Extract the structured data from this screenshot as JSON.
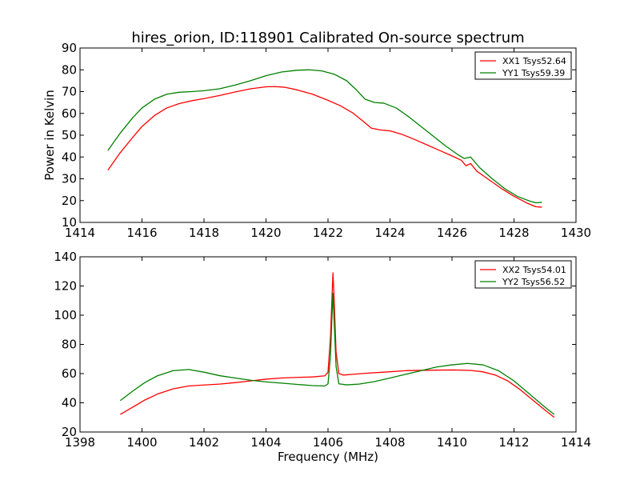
{
  "figure_title": "hires_orion, ID:118901 Calibrated On-source spectrum",
  "colors": {
    "red": "#ff0000",
    "green": "#008000"
  },
  "chart_data": [
    {
      "type": "line",
      "title": "hires_orion, ID:118901 Calibrated On-source spectrum",
      "xlabel": "",
      "ylabel": "Power in Kelvin",
      "xlim": [
        1414,
        1430
      ],
      "ylim": [
        10,
        90
      ],
      "xticks": [
        "1414",
        "1416",
        "1418",
        "1420",
        "1422",
        "1424",
        "1426",
        "1428",
        "1430"
      ],
      "yticks": [
        "10",
        "20",
        "30",
        "40",
        "50",
        "60",
        "70",
        "80",
        "90"
      ],
      "legend_position": "top-right",
      "grid": false,
      "series": [
        {
          "name": "XX1 Tsys52.64",
          "color": "#ff0000",
          "x": [
            1414.9,
            1415.3,
            1415.7,
            1416.0,
            1416.4,
            1416.8,
            1417.2,
            1417.6,
            1418.0,
            1418.5,
            1419.0,
            1419.5,
            1420.0,
            1420.3,
            1420.6,
            1421.0,
            1421.5,
            1422.0,
            1422.4,
            1422.8,
            1423.1,
            1423.4,
            1423.7,
            1424.0,
            1424.4,
            1424.8,
            1425.2,
            1425.6,
            1426.0,
            1426.3,
            1426.45,
            1426.6,
            1426.8,
            1427.2,
            1427.6,
            1428.0,
            1428.4,
            1428.7,
            1428.9
          ],
          "values": [
            34,
            42,
            49,
            54,
            59,
            62.5,
            64.5,
            65.8,
            66.8,
            68.2,
            69.8,
            71.3,
            72.2,
            72.3,
            72.0,
            70.8,
            68.8,
            66.0,
            63.5,
            60.2,
            56.8,
            53.2,
            52.4,
            52.0,
            50.3,
            48.0,
            45.5,
            43.0,
            40.5,
            38.5,
            36.0,
            37.0,
            33.5,
            29.5,
            25.5,
            22.0,
            19.0,
            17.2,
            17.0
          ]
        },
        {
          "name": "YY1 Tsys59.39",
          "color": "#008000",
          "x": [
            1414.9,
            1415.3,
            1415.7,
            1416.0,
            1416.4,
            1416.8,
            1417.2,
            1417.6,
            1418.0,
            1418.5,
            1419.0,
            1419.5,
            1420.0,
            1420.5,
            1421.0,
            1421.4,
            1421.8,
            1422.2,
            1422.6,
            1422.9,
            1423.2,
            1423.5,
            1423.8,
            1424.2,
            1424.6,
            1425.0,
            1425.4,
            1425.8,
            1426.2,
            1426.4,
            1426.6,
            1426.9,
            1427.3,
            1427.7,
            1428.1,
            1428.5,
            1428.7,
            1428.9
          ],
          "values": [
            43,
            51,
            58,
            62.5,
            66.5,
            68.8,
            69.7,
            70.0,
            70.4,
            71.3,
            73.0,
            75.0,
            77.3,
            79.0,
            79.8,
            80.0,
            79.5,
            78.0,
            75.0,
            71.0,
            66.5,
            65.0,
            64.7,
            62.5,
            58.5,
            54.0,
            49.5,
            45.0,
            41.0,
            39.3,
            40.0,
            35.0,
            30.0,
            25.5,
            22.0,
            19.8,
            19.0,
            19.2
          ]
        }
      ]
    },
    {
      "type": "line",
      "title": "",
      "xlabel": "Frequency (MHz)",
      "ylabel": "",
      "xlim": [
        1398,
        1414
      ],
      "ylim": [
        20,
        140
      ],
      "xticks": [
        "1398",
        "1400",
        "1402",
        "1404",
        "1406",
        "1408",
        "1410",
        "1412",
        "1414"
      ],
      "yticks": [
        "20",
        "40",
        "60",
        "80",
        "100",
        "120",
        "140"
      ],
      "legend_position": "top-right",
      "grid": false,
      "series": [
        {
          "name": "XX2 Tsys54.01",
          "color": "#ff0000",
          "x": [
            1399.3,
            1399.7,
            1400.1,
            1400.5,
            1401.0,
            1401.5,
            1402.0,
            1402.5,
            1403.0,
            1403.5,
            1404.0,
            1404.5,
            1405.0,
            1405.5,
            1405.9,
            1406.0,
            1406.08,
            1406.13,
            1406.16,
            1406.2,
            1406.26,
            1406.35,
            1406.5,
            1406.8,
            1407.2,
            1407.8,
            1408.5,
            1409.2,
            1410.0,
            1410.6,
            1411.0,
            1411.4,
            1411.8,
            1412.2,
            1412.6,
            1413.0,
            1413.3
          ],
          "values": [
            32,
            37,
            42,
            46,
            49.5,
            51.5,
            52.2,
            52.8,
            53.8,
            55.0,
            56.2,
            57.0,
            57.4,
            57.7,
            58.5,
            61.0,
            85.0,
            113.0,
            129.0,
            110.0,
            75.0,
            60.0,
            59.0,
            59.5,
            60.2,
            61.0,
            62.0,
            62.3,
            62.5,
            62.2,
            61.2,
            59.0,
            55.0,
            49.0,
            42.0,
            35.0,
            30.0
          ]
        },
        {
          "name": "YY2 Tsys56.52",
          "color": "#008000",
          "x": [
            1399.3,
            1399.7,
            1400.1,
            1400.5,
            1401.0,
            1401.5,
            1402.0,
            1402.5,
            1403.0,
            1403.5,
            1404.0,
            1404.5,
            1405.0,
            1405.5,
            1405.9,
            1406.0,
            1406.08,
            1406.13,
            1406.16,
            1406.2,
            1406.26,
            1406.35,
            1406.6,
            1407.0,
            1407.5,
            1408.0,
            1408.5,
            1409.0,
            1409.5,
            1410.0,
            1410.5,
            1411.0,
            1411.5,
            1412.0,
            1412.5,
            1413.0,
            1413.3
          ],
          "values": [
            41.5,
            48,
            54,
            58.5,
            62.0,
            62.8,
            61.0,
            58.6,
            57.0,
            55.5,
            54.3,
            53.5,
            52.6,
            51.8,
            51.5,
            53.0,
            72.0,
            100.0,
            115.0,
            95.0,
            65.0,
            53.0,
            52.3,
            52.8,
            54.5,
            57.0,
            59.5,
            62.0,
            64.5,
            66.0,
            67.0,
            66.0,
            62.0,
            55.0,
            46.0,
            37.0,
            32.0
          ]
        }
      ]
    }
  ]
}
